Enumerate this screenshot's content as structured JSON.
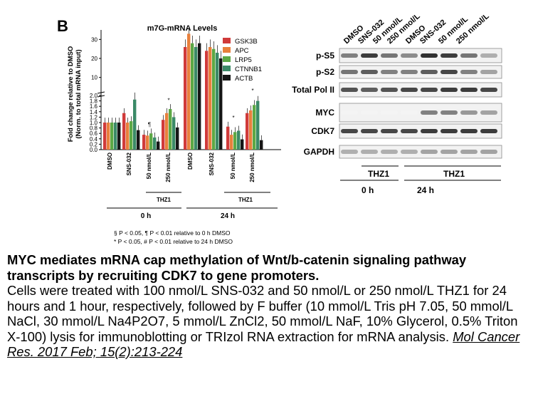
{
  "panel_label": "B",
  "chart_data": {
    "type": "bar",
    "title": "m7G-mRNA Levels",
    "ylabel": "Fold change relative to DMSO\n(Norm. to total mRNA input)",
    "ylabel_lines": [
      "Fold change relative to DMSO",
      "(Norm. to total mRNA input)"
    ],
    "y_scale": "broken",
    "y_ticks": [
      "0.0",
      "0.2",
      "0.4",
      "0.6",
      "0.8",
      "1.0",
      "1.2",
      "1.4",
      "1.6",
      "1.8",
      "2.0",
      "10",
      "20",
      "30"
    ],
    "ylim_lower": [
      0,
      2.0
    ],
    "ylim_upper": [
      2.0,
      35
    ],
    "categories": [
      "DMSO",
      "SNS-032",
      "50 nmol/L",
      "250 nmol/L",
      "DMSO",
      "SNS-032",
      "50 nmol/L",
      "250 nmol/L"
    ],
    "legend_position": "top-right",
    "series": [
      {
        "name": "GSK3B",
        "color": "#d03a3a",
        "values": [
          1.0,
          1.35,
          0.55,
          1.1,
          26,
          24,
          0.85,
          1.35
        ]
      },
      {
        "name": "APC",
        "color": "#e8803c",
        "values": [
          1.0,
          1.0,
          0.52,
          1.35,
          33,
          26,
          0.55,
          1.45
        ]
      },
      {
        "name": "LRP5",
        "color": "#5ca845",
        "values": [
          1.0,
          1.05,
          0.6,
          1.5,
          28,
          25,
          0.65,
          1.65
        ]
      },
      {
        "name": "CTNNB1",
        "color": "#3b8a67",
        "values": [
          1.0,
          1.85,
          0.45,
          1.2,
          26,
          23,
          0.7,
          1.8
        ]
      },
      {
        "name": "ACTB",
        "color": "#161616",
        "values": [
          1.0,
          0.72,
          0.3,
          0.82,
          28,
          20,
          0.38,
          0.35
        ]
      }
    ],
    "annotations": [
      "§§",
      "¶",
      "¶",
      "*",
      "*",
      "#",
      "*",
      "*"
    ],
    "group_labels": {
      "treatment": "THZ1",
      "time_0": "0 h",
      "time_24": "24 h"
    },
    "footnotes": [
      "§ P < 0.05, ¶ P < 0.01 relative to 0 h DMSO",
      "* P < 0.05, # P < 0.01 relative to 24 h DMSO"
    ]
  },
  "blot": {
    "lane_labels": [
      "DMSO",
      "SNS-032",
      "50 nmol/L",
      "250 nmol/L",
      "DMSO",
      "SNS-032",
      "50 nmol/L",
      "250 nmol/L"
    ],
    "rows": [
      "p-S5",
      "p-S2",
      "Total Pol II",
      "MYC",
      "CDK7",
      "GAPDH"
    ],
    "treatment_label": "THZ1",
    "time_labels": [
      "0 h",
      "24 h"
    ]
  },
  "caption": {
    "title": "MYC mediates mRNA cap methylation of Wnt/b-catenin signaling pathway transcripts by recruiting CDK7 to gene promoters.",
    "body": "Cells were treated with 100 nmol/L SNS-032 and 50 nmol/L or 250 nmol/L THZ1 for 24 hours and 1 hour, respectively, followed by F buffer (10 mmol/L Tris pH 7.05, 50 mmol/L NaCl, 30 mmol/L Na4P2O7, 5 mmol/L ZnCl2, 50 mmol/L NaF, 10% Glycerol, 0.5% Triton X-100) lysis for immunoblotting or TRIzol RNA extraction for mRNA analysis.",
    "citation": "Mol Cancer Res. 2017 Feb; 15(2):213-224"
  }
}
